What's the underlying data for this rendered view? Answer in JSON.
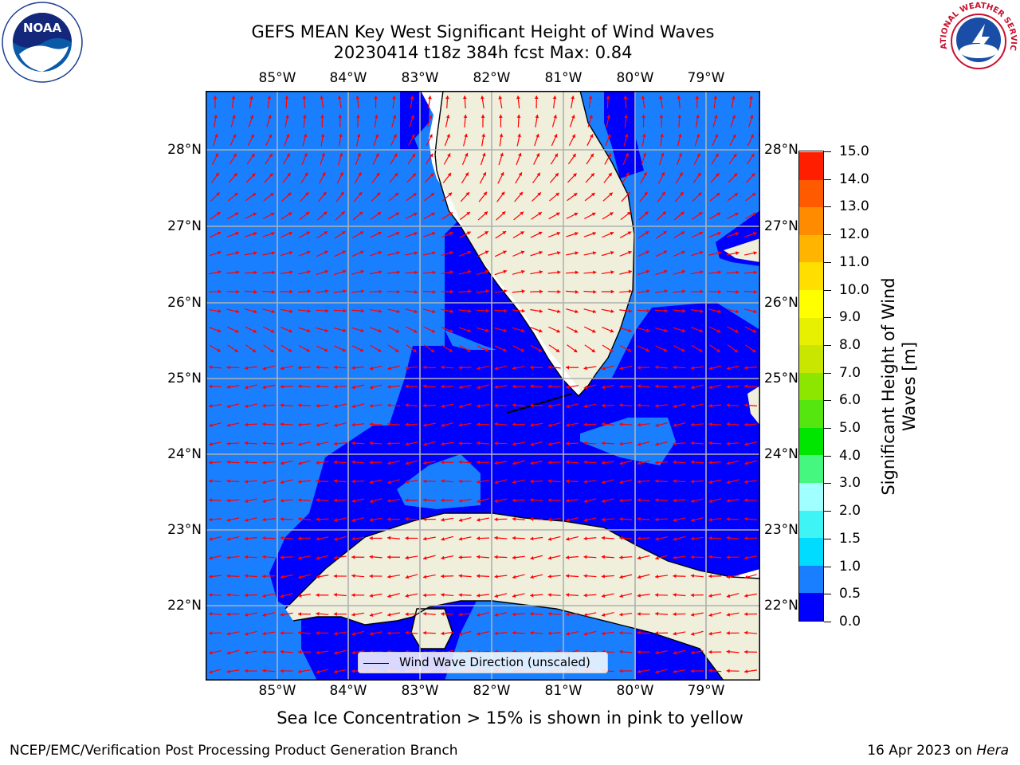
{
  "title_line1": "GEFS MEAN Key West Significant Height of Wind Waves",
  "title_line2": "20230414 t18z 384h fcst   Max: 0.84",
  "logos": {
    "left": "noaa-logo",
    "right": "nws-logo",
    "left_text": "NOAA",
    "right_text": "NATIONAL WEATHER SERVICE"
  },
  "lon_labels": [
    "85°W",
    "84°W",
    "83°W",
    "82°W",
    "81°W",
    "80°W",
    "79°W"
  ],
  "lat_labels": [
    "28°N",
    "27°N",
    "26°N",
    "25°N",
    "24°N",
    "23°N",
    "22°N"
  ],
  "legend_label": "Wind Wave Direction (unscaled)",
  "colorbar": {
    "title": "Significant Height of Wind Waves [m]",
    "ticks": [
      "0.0",
      "0.5",
      "1.0",
      "1.5",
      "2.0",
      "3.0",
      "4.0",
      "5.0",
      "6.0",
      "7.0",
      "8.0",
      "9.0",
      "10.0",
      "11.0",
      "12.0",
      "13.0",
      "14.0",
      "15.0"
    ],
    "colors": [
      "#0000ff",
      "#1a7fff",
      "#00dcff",
      "#3ff4f4",
      "#a0ffff",
      "#46f77f",
      "#00e600",
      "#56e60f",
      "#8ce600",
      "#c8e600",
      "#e6f000",
      "#ffff00",
      "#ffde00",
      "#ffb400",
      "#ff8c00",
      "#ff5a00",
      "#ff1e00"
    ]
  },
  "map": {
    "region": "Key West",
    "lon_range": [
      -86.0,
      -78.25
    ],
    "lat_range": [
      21.0,
      28.75
    ],
    "colors": {
      "ocean_light": "#1a7fff",
      "ocean_dark": "#0000ff",
      "land": "#efefdc",
      "arrow": "#ff0000",
      "grid": "#b0b0b0",
      "coast": "#000000"
    }
  },
  "ice_note": "Sea Ice Concentration > 15% is shown in pink to yellow",
  "footer_left": "NCEP/EMC/Verification Post Processing Product Generation Branch",
  "footer_date": "16 Apr 2023 on",
  "footer_host": "Hera"
}
